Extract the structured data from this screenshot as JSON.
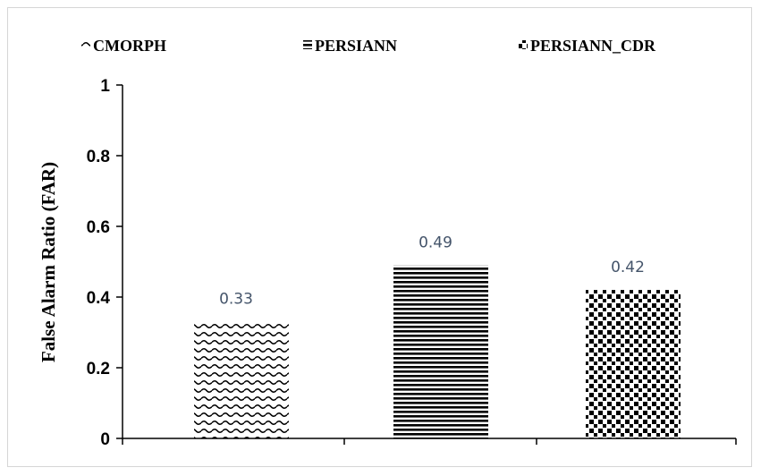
{
  "chart_data": {
    "type": "bar",
    "title": "",
    "xlabel": "",
    "ylabel": "False Alarm Ratio (FAR)",
    "ylim": [
      0,
      1
    ],
    "yticks": [
      0,
      0.2,
      0.4,
      0.6,
      0.8,
      1
    ],
    "ytick_labels": [
      "0",
      "0.2",
      "0.4",
      "0.6",
      "0.8",
      "1"
    ],
    "grid": false,
    "legend_position": "top",
    "series": [
      {
        "name": "CMORPH",
        "pattern": "wave",
        "value": 0.33,
        "label": "0.33"
      },
      {
        "name": "PERSIANN",
        "pattern": "horizontal-lines",
        "value": 0.49,
        "label": "0.49"
      },
      {
        "name": "PERSIANN_CDR",
        "pattern": "checker",
        "value": 0.42,
        "label": "0.42"
      }
    ],
    "colors": {
      "bar_fill": "#000000",
      "data_label": "#44546a",
      "axis": "#000000",
      "frame": "#d6d6d6"
    }
  }
}
